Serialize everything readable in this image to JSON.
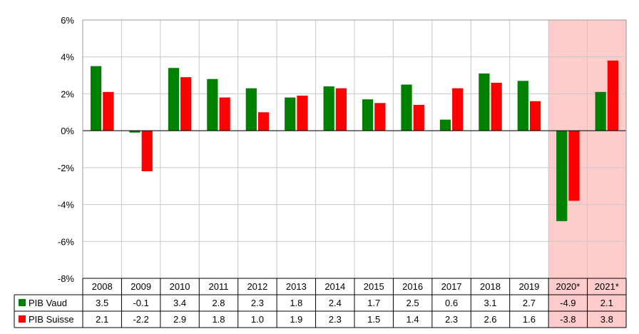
{
  "chart_data": {
    "type": "bar",
    "title": "",
    "xlabel": "",
    "ylabel": "",
    "ylim": [
      -8,
      6
    ],
    "y_ticks": [
      "6%",
      "4%",
      "2%",
      "0%",
      "-2%",
      "-4%",
      "-6%",
      "-8%"
    ],
    "y_tick_values": [
      6,
      4,
      2,
      0,
      -2,
      -4,
      -6,
      -8
    ],
    "grid": true,
    "legend": "data-table-left",
    "categories": [
      "2008",
      "2009",
      "2010",
      "2011",
      "2012",
      "2013",
      "2014",
      "2015",
      "2016",
      "2017",
      "2018",
      "2019",
      "2020*",
      "2021*"
    ],
    "highlighted_categories": [
      "2020*",
      "2021*"
    ],
    "highlight_color": "#ffcccc",
    "series": [
      {
        "name": "PIB Vaud",
        "color": "#008000",
        "values": [
          3.5,
          -0.1,
          3.4,
          2.8,
          2.3,
          1.8,
          2.4,
          1.7,
          2.5,
          0.6,
          3.1,
          2.7,
          -4.9,
          2.1
        ],
        "labels": [
          "3.5",
          "-0.1",
          "3.4",
          "2.8",
          "2.3",
          "1.8",
          "2.4",
          "1.7",
          "2.5",
          "0.6",
          "3.1",
          "2.7",
          "-4.9",
          "2.1"
        ]
      },
      {
        "name": "PIB Suisse",
        "color": "#ff0000",
        "values": [
          2.1,
          -2.2,
          2.9,
          1.8,
          1.0,
          1.9,
          2.3,
          1.5,
          1.4,
          2.3,
          2.6,
          1.6,
          -3.8,
          3.8
        ],
        "labels": [
          "2.1",
          "-2.2",
          "2.9",
          "1.8",
          "1.0",
          "1.9",
          "2.3",
          "1.5",
          "1.4",
          "2.3",
          "2.6",
          "1.6",
          "-3.8",
          "3.8"
        ]
      }
    ]
  }
}
